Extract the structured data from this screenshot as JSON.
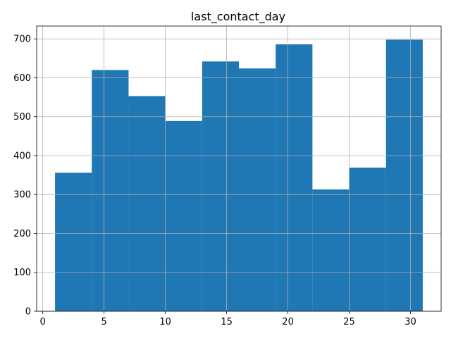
{
  "chart_data": {
    "type": "bar",
    "subtype": "histogram",
    "title": "last_contact_day",
    "xlabel": "",
    "ylabel": "",
    "bins": [
      {
        "start": 1,
        "end": 4,
        "count": 356
      },
      {
        "start": 4,
        "end": 7,
        "count": 620
      },
      {
        "start": 7,
        "end": 10,
        "count": 553
      },
      {
        "start": 10,
        "end": 13,
        "count": 489
      },
      {
        "start": 13,
        "end": 16,
        "count": 642
      },
      {
        "start": 16,
        "end": 19,
        "count": 624
      },
      {
        "start": 19,
        "end": 22,
        "count": 686
      },
      {
        "start": 22,
        "end": 25,
        "count": 313
      },
      {
        "start": 25,
        "end": 28,
        "count": 369
      },
      {
        "start": 28,
        "end": 31,
        "count": 698
      }
    ],
    "xlim": [
      -0.5,
      32.5
    ],
    "ylim": [
      0,
      733
    ],
    "x_ticks": [
      0,
      5,
      10,
      15,
      20,
      25,
      30
    ],
    "y_ticks": [
      0,
      100,
      200,
      300,
      400,
      500,
      600,
      700
    ],
    "grid": true,
    "bar_color": "#1f77b4"
  }
}
